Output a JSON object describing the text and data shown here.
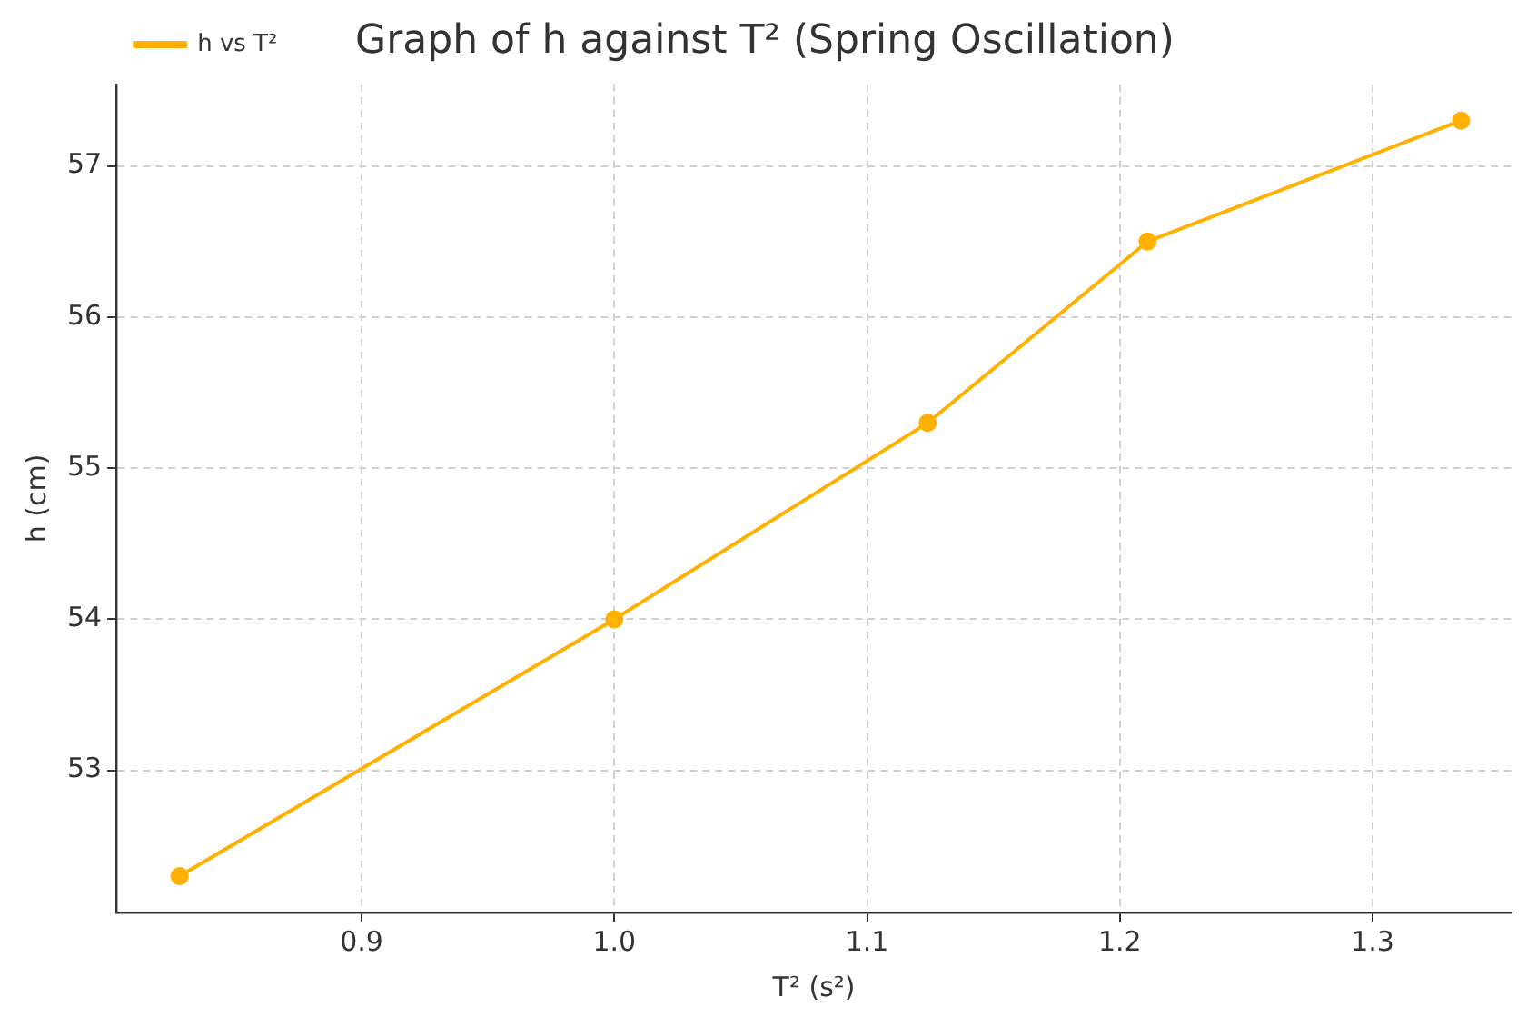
{
  "chart_data": {
    "type": "line",
    "title": "Graph of h against T² (Spring Oscillation)",
    "xlabel": "T² (s²)",
    "ylabel": "h (cm)",
    "x": [
      0.828,
      1.0,
      1.124,
      1.211,
      1.335
    ],
    "series": [
      {
        "name": "h vs T²",
        "color": "#ffb000",
        "values": [
          52.3,
          54.0,
          55.3,
          56.5,
          57.3
        ]
      }
    ],
    "xlim": [
      0.803,
      1.355
    ],
    "xticks": [
      0.9,
      {
        "value": 1,
        "label": "1.0"
      },
      1.1,
      1.2,
      1.3
    ],
    "ylim": [
      52.06,
      57.54
    ],
    "yticks": [
      53,
      54,
      55,
      56,
      57
    ],
    "grid": true,
    "legend": "top left",
    "marker": "circle",
    "line_style": "solid"
  }
}
